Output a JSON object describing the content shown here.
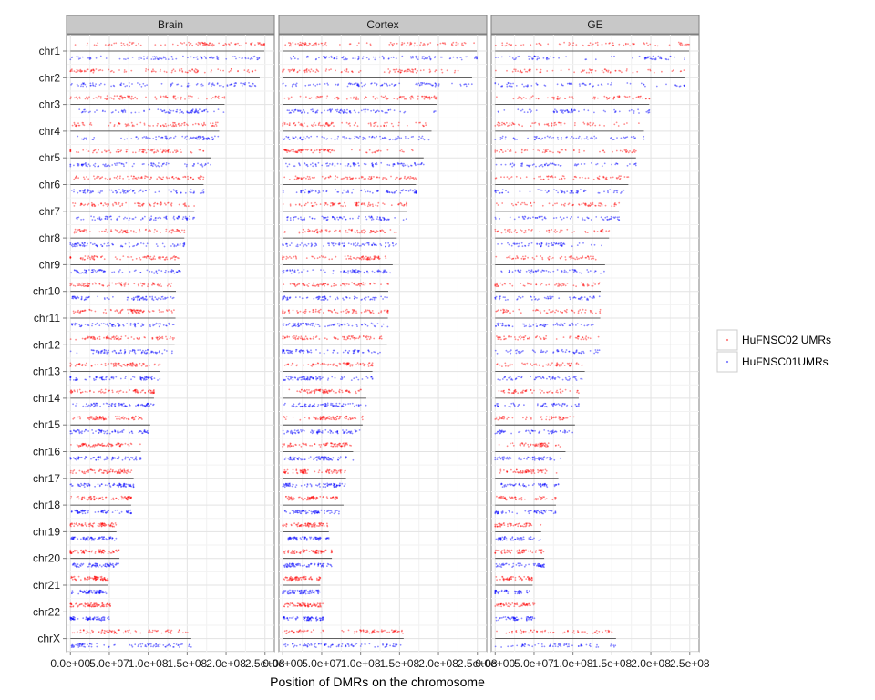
{
  "chart_data": {
    "type": "scatter",
    "facets": [
      "Brain",
      "Cortex",
      "GE"
    ],
    "categories": [
      "chr1",
      "chr2",
      "chr3",
      "chr4",
      "chr5",
      "chr6",
      "chr7",
      "chr8",
      "chr9",
      "chr10",
      "chr11",
      "chr12",
      "chr13",
      "chr14",
      "chr15",
      "chr16",
      "chr17",
      "chr18",
      "chr19",
      "chr20",
      "chr21",
      "chr22",
      "chrX"
    ],
    "chromosome_lengths": [
      249250621,
      243199373,
      198022430,
      191154276,
      180915260,
      171115067,
      159138663,
      146364022,
      141213431,
      135534747,
      135006516,
      133851895,
      115169878,
      107349540,
      102531392,
      90354753,
      81195210,
      78077248,
      59128983,
      63025520,
      48129895,
      51304566,
      155270560
    ],
    "xlabel": "Position of DMRs on the chromosome",
    "ylabel": "",
    "xlim": [
      -5000000,
      262000000
    ],
    "x_ticks": [
      0,
      50000000,
      100000000,
      150000000,
      200000000,
      250000000
    ],
    "x_tick_labels": [
      "0.0e+00",
      "5.0e+07",
      "1.0e+08",
      "1.5e+08",
      "2.0e+08",
      "2.5e+08"
    ],
    "grid": true,
    "legend_position": "right",
    "series": [
      {
        "name": "HuFNSC02 UMRs",
        "color": "#ff0000",
        "offset": "upper"
      },
      {
        "name": "HuFNSC01UMRs",
        "color": "#0000ff",
        "offset": "lower"
      }
    ]
  }
}
